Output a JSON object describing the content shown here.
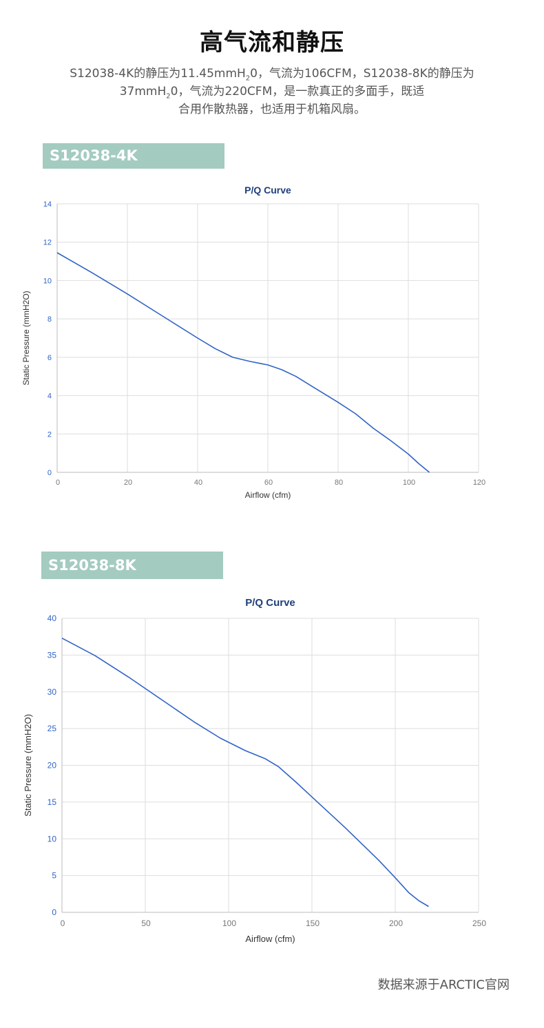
{
  "heading": "高气流和静压",
  "intro": {
    "line1_a": "S12038-4K的静压为11.45mmH",
    "line1_sub": "2",
    "line1_b": "0，气流为106CFM，S12038-8K的静压为",
    "line2_a": "37mmH",
    "line2_sub": "2",
    "line2_b": "0，气流为220CFM，是一款真正的多面手，既适",
    "line3": "合用作散热器，也适用于机箱风扇。"
  },
  "charts": [
    {
      "banner": "S12038-4K",
      "title": "P/Q Curve",
      "xlabel": "Airflow (cfm)",
      "ylabel": "Static Pressure (mmH2O)"
    },
    {
      "banner": "S12038-8K",
      "title": "P/Q Curve",
      "xlabel": "Airflow (cfm)",
      "ylabel": "Static Pressure (mmH2O)"
    }
  ],
  "chart_data": [
    {
      "type": "line",
      "title": "P/Q Curve",
      "xlabel": "Airflow (cfm)",
      "ylabel": "Static Pressure (mmH2O)",
      "xlim": [
        0,
        120
      ],
      "ylim": [
        0,
        14
      ],
      "xticks": [
        "0",
        "20",
        "40",
        "60",
        "80",
        "100",
        "120"
      ],
      "yticks": [
        "0",
        "2",
        "4",
        "6",
        "8",
        "10",
        "12",
        "14"
      ],
      "grid": true,
      "color": "#2f63c7",
      "x": [
        0,
        10,
        20,
        30,
        40,
        45,
        50,
        55,
        60,
        64,
        68,
        72,
        76,
        80,
        85,
        90,
        95,
        100,
        103,
        106
      ],
      "y": [
        11.45,
        10.4,
        9.3,
        8.15,
        7.0,
        6.45,
        6.0,
        5.78,
        5.6,
        5.35,
        5.0,
        4.55,
        4.1,
        3.65,
        3.05,
        2.3,
        1.65,
        0.95,
        0.45,
        0
      ]
    },
    {
      "type": "line",
      "title": "P/Q Curve",
      "xlabel": "Airflow (cfm)",
      "ylabel": "Static Pressure (mmH2O)",
      "xlim": [
        0,
        250
      ],
      "ylim": [
        0,
        40
      ],
      "xticks": [
        "0",
        "50",
        "100",
        "150",
        "200",
        "250"
      ],
      "yticks": [
        "0",
        "5",
        "10",
        "15",
        "20",
        "25",
        "30",
        "35",
        "40"
      ],
      "grid": true,
      "color": "#2f63c7",
      "x": [
        0,
        20,
        40,
        60,
        80,
        95,
        110,
        122,
        130,
        140,
        150,
        160,
        170,
        180,
        190,
        200,
        208,
        214,
        220
      ],
      "y": [
        37.3,
        34.9,
        32.0,
        28.9,
        25.8,
        23.7,
        22.0,
        20.9,
        19.8,
        17.8,
        15.7,
        13.6,
        11.5,
        9.3,
        7.1,
        4.7,
        2.7,
        1.6,
        0.8
      ]
    }
  ],
  "source_note": "数据来源于ARCTIC官网"
}
